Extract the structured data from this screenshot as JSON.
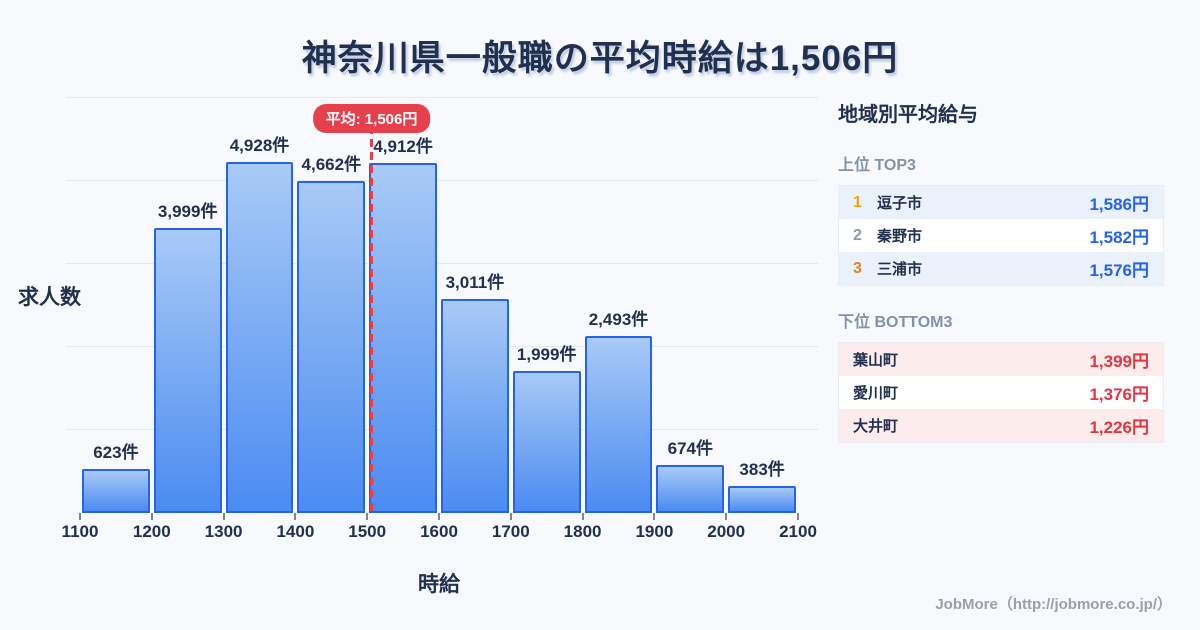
{
  "title": "神奈川県一般職の平均時給は1,506円",
  "chart_data": {
    "type": "bar",
    "title": "神奈川県一般職の平均時給は1,506円",
    "xlabel": "時給",
    "ylabel": "求人数",
    "x_range": [
      1100,
      2100
    ],
    "bin_width": 100,
    "x_ticks": [
      "1100",
      "1200",
      "1300",
      "1400",
      "1500",
      "1600",
      "1700",
      "1800",
      "1900",
      "2000",
      "2100"
    ],
    "values": [
      623,
      3999,
      4928,
      4662,
      4912,
      3011,
      1999,
      2493,
      674,
      383
    ],
    "labels": [
      "623件",
      "3,999件",
      "4,928件",
      "4,662件",
      "4,912件",
      "3,011件",
      "1,999件",
      "2,493件",
      "674件",
      "383件"
    ],
    "average": {
      "value": 1506,
      "label": "平均: 1,506円"
    },
    "ylim": [
      0,
      5830
    ],
    "grid_divisions": 5,
    "grid": true,
    "legend": false
  },
  "sidebar": {
    "title": "地域別平均給与",
    "top_section": {
      "heading": "上位 TOP3",
      "rows": [
        {
          "rank": "1",
          "name": "逗子市",
          "value": "1,586円"
        },
        {
          "rank": "2",
          "name": "秦野市",
          "value": "1,582円"
        },
        {
          "rank": "3",
          "name": "三浦市",
          "value": "1,576円"
        }
      ]
    },
    "bottom_section": {
      "heading": "下位 BOTTOM3",
      "rows": [
        {
          "name": "葉山町",
          "value": "1,399円"
        },
        {
          "name": "愛川町",
          "value": "1,376円"
        },
        {
          "name": "大井町",
          "value": "1,226円"
        }
      ]
    }
  },
  "footer": {
    "credit": "JobMore（http://jobmore.co.jp/）"
  },
  "colors": {
    "background": "#f7f9fd",
    "ink": "#22304f",
    "grid": "#e4e9f1",
    "bar_border": "#2563eb",
    "bar_gradient_top": "#a8caf6",
    "bar_gradient_bottom": "#4b8bf1",
    "average_red": "#e5404c",
    "value_blue": "#2563eb",
    "value_red": "#e23540",
    "rank_gold": "#eba417",
    "rank_silver": "#8d99ab",
    "rank_bronze": "#e2801f"
  }
}
